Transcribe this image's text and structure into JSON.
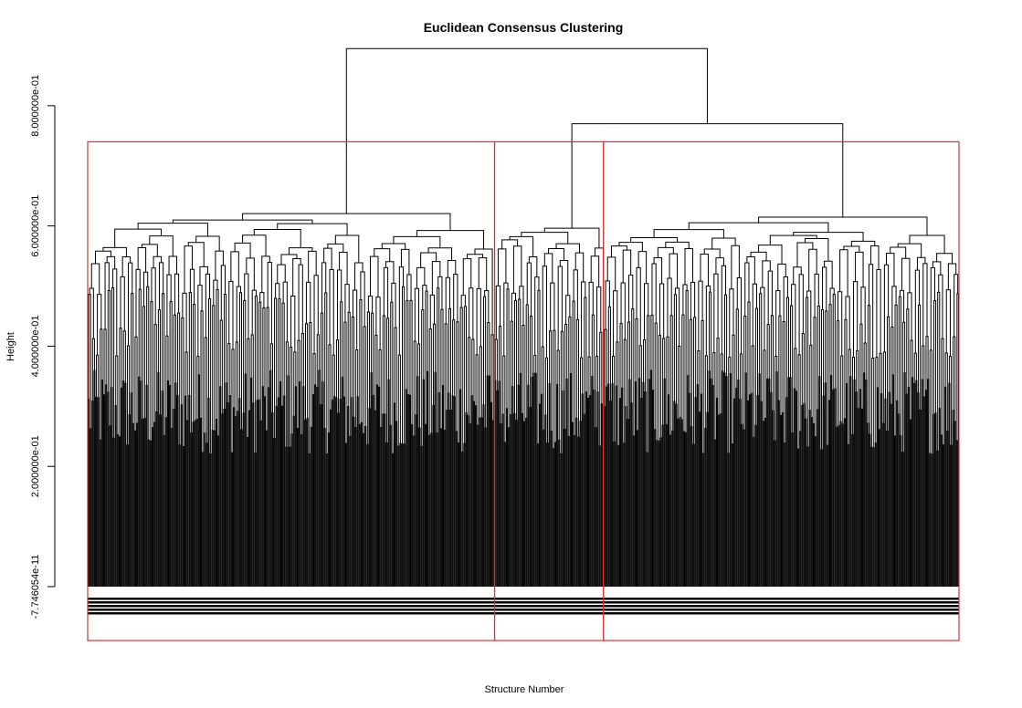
{
  "chart_data": {
    "type": "dendrogram",
    "title": "Euclidean Consensus Clustering",
    "xlabel": "Structure Number",
    "ylabel": "Height",
    "yticks": [
      {
        "value": 0.0,
        "label": "-7.746054e-11"
      },
      {
        "value": 0.2,
        "label": "2.000000e-01"
      },
      {
        "value": 0.4,
        "label": "4.000000e-01"
      },
      {
        "value": 0.6,
        "label": "6.000000e-01"
      },
      {
        "value": 0.8,
        "label": "8.000000e-01"
      }
    ],
    "ylim": [
      0.0,
      0.95
    ],
    "leaf_count": 900,
    "root_height": 0.895,
    "cut_height": 0.74,
    "clusters": [
      {
        "index": 1,
        "leaf_range": [
          0.0,
          0.467
        ],
        "merge_height": 0.71
      },
      {
        "index": 2,
        "leaf_range": [
          0.467,
          0.592
        ],
        "merge_height": 0.7
      },
      {
        "index": 3,
        "leaf_range": [
          0.592,
          1.0
        ],
        "merge_height": 0.71
      }
    ],
    "upper_merges": [
      {
        "children": [
          "cluster2",
          "cluster3"
        ],
        "height": 0.77
      },
      {
        "children": [
          "cluster1",
          "cluster2+3"
        ],
        "height": 0.895
      }
    ],
    "rect_color": "#e03030",
    "line_color": "#000000"
  }
}
